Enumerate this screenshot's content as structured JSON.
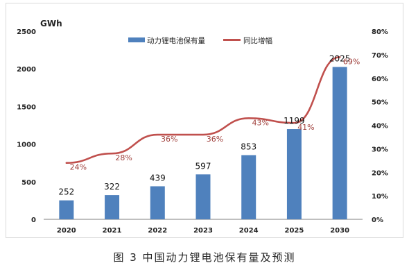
{
  "chart_data": {
    "type": "bar+line",
    "categories": [
      "2020",
      "2021",
      "2022",
      "2023",
      "2024",
      "2025",
      "2030"
    ],
    "series": [
      {
        "name": "动力锂电池保有量",
        "type": "bar",
        "axis": "left",
        "values": [
          252,
          322,
          439,
          597,
          853,
          1199,
          2025
        ],
        "labels": [
          "252",
          "322",
          "439",
          "597",
          "853",
          "1199",
          "2025"
        ],
        "color": "#4f81bd"
      },
      {
        "name": "同比增幅",
        "type": "line",
        "axis": "right",
        "values": [
          0.24,
          0.28,
          0.36,
          0.36,
          0.43,
          0.41,
          0.69
        ],
        "labels": [
          "24%",
          "28%",
          "36%",
          "36%",
          "43%",
          "41%",
          "69%"
        ],
        "color": "#c0504d"
      }
    ],
    "y_left": {
      "unit": "GWh",
      "ylim": [
        0,
        2500
      ],
      "ticks": [
        "0",
        "500",
        "1000",
        "1500",
        "2000",
        "2500"
      ]
    },
    "y_right": {
      "ylim": [
        0,
        0.8
      ],
      "ticks": [
        "0%",
        "10%",
        "20%",
        "30%",
        "40%",
        "50%",
        "60%",
        "70%",
        "80%"
      ]
    },
    "legend_position": "top"
  },
  "caption": "图 3   中国动力锂电池保有量及预测"
}
